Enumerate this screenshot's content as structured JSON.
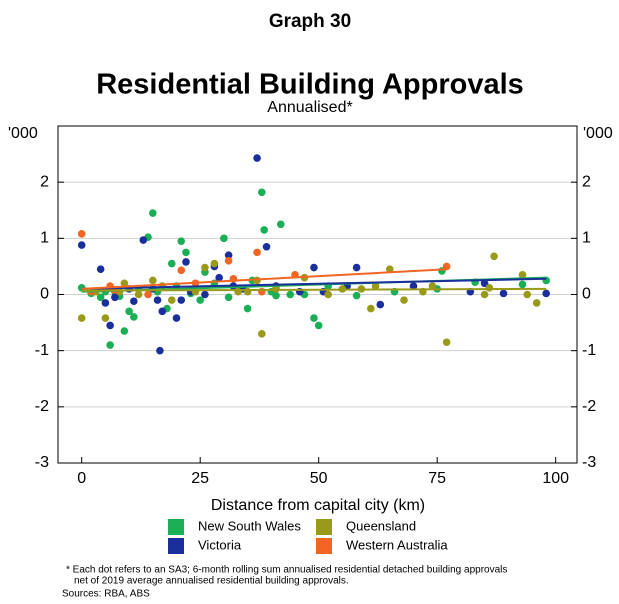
{
  "chart_data": {
    "type": "scatter",
    "title": "Graph 30",
    "subtitle": "Residential Building Approvals",
    "note": "Annualised*",
    "x_label": "Distance from capital city (km)",
    "y_label": "'000",
    "y2_label": "'000",
    "xlim": [
      -5,
      104.5
    ],
    "xticks": [
      0,
      25,
      50,
      75,
      100
    ],
    "ylim": [
      -3,
      3
    ],
    "yticks": [
      -3,
      -2,
      -1,
      0,
      1,
      2
    ],
    "y2lim": [
      -3,
      3
    ],
    "y2ticks": [
      -3,
      -2,
      -1,
      0,
      1,
      2
    ],
    "grid": true,
    "series": [
      {
        "name": "New South Wales",
        "color": "#1aaf54",
        "x": [
          0,
          2,
          4,
          5,
          6,
          7,
          8,
          9,
          10,
          11,
          12,
          14,
          15,
          16,
          18,
          19,
          20,
          21,
          22,
          23,
          25,
          26,
          28,
          30,
          31,
          35,
          36,
          38,
          38.5,
          40,
          41,
          42,
          44,
          47,
          49,
          50,
          52,
          58,
          66,
          75,
          76,
          83,
          93,
          98
        ],
        "values": [
          0.12,
          0.02,
          -0.05,
          0.05,
          -0.9,
          0.05,
          -0.03,
          -0.65,
          -0.3,
          -0.4,
          0.1,
          1.02,
          1.45,
          0.05,
          -0.25,
          0.55,
          0.15,
          0.95,
          0.75,
          0.02,
          -0.1,
          0.4,
          0.2,
          1.0,
          -0.05,
          -0.25,
          0.25,
          1.82,
          1.15,
          0.05,
          -0.02,
          1.25,
          0.0,
          0.0,
          -0.42,
          -0.55,
          0.15,
          -0.02,
          0.05,
          0.1,
          0.42,
          0.22,
          0.18,
          0.25
        ],
        "trend": {
          "x": [
            0,
            98
          ],
          "values": [
            0.05,
            0.3
          ]
        }
      },
      {
        "name": "Victoria",
        "color": "#1a2e9c",
        "x": [
          0,
          4,
          5,
          6,
          7,
          10,
          11,
          13,
          15,
          16,
          16.5,
          17,
          20,
          21,
          22,
          23,
          26,
          28,
          29,
          31,
          32,
          34,
          37,
          39,
          41,
          46,
          49,
          51,
          56,
          58,
          63,
          70,
          82,
          85,
          89,
          98
        ],
        "values": [
          0.88,
          0.45,
          -0.15,
          -0.55,
          -0.05,
          0.1,
          -0.12,
          0.97,
          0.1,
          -0.1,
          -1.0,
          -0.3,
          -0.42,
          -0.1,
          0.58,
          0.05,
          0.0,
          0.5,
          0.3,
          0.7,
          0.15,
          0.1,
          2.43,
          0.85,
          0.15,
          0.05,
          0.48,
          0.05,
          0.15,
          0.48,
          -0.18,
          0.15,
          0.05,
          0.2,
          0.02,
          0.02
        ],
        "trend": {
          "x": [
            0,
            98
          ],
          "values": [
            0.1,
            0.28
          ]
        }
      },
      {
        "name": "Queensland",
        "color": "#9a9a1a",
        "x": [
          0,
          3,
          5,
          8,
          9,
          12,
          15,
          17,
          19,
          24,
          26,
          28,
          33,
          35,
          37,
          38,
          41,
          47,
          52,
          55,
          59,
          61,
          62,
          65,
          68,
          72,
          74,
          77,
          85,
          86,
          87,
          93,
          94,
          96
        ],
        "values": [
          -0.42,
          0.05,
          -0.42,
          0.05,
          0.2,
          0.0,
          0.25,
          0.15,
          -0.1,
          0.05,
          0.48,
          0.55,
          0.05,
          0.05,
          0.25,
          -0.7,
          0.1,
          0.3,
          0.0,
          0.1,
          0.1,
          -0.25,
          0.15,
          0.45,
          -0.1,
          0.05,
          0.15,
          -0.85,
          0.0,
          0.12,
          0.68,
          0.35,
          0.0,
          -0.15
        ],
        "trend": {
          "x": [
            0,
            98
          ],
          "values": [
            0.07,
            0.1
          ]
        }
      },
      {
        "name": "Western Australia",
        "color": "#f26522",
        "x": [
          0,
          2,
          6,
          7,
          14,
          21,
          24,
          31,
          32,
          37,
          38,
          45,
          77
        ],
        "values": [
          1.08,
          0.05,
          0.15,
          0.08,
          0.0,
          0.43,
          0.2,
          0.6,
          0.28,
          0.75,
          0.05,
          0.35,
          0.5
        ],
        "trend": {
          "x": [
            0,
            77
          ],
          "values": [
            0.1,
            0.45
          ]
        }
      }
    ],
    "footnote": [
      "* Each dot refers to an SA3; 6-month rolling sum annualised residential detached building approvals",
      "net of 2019 average annualised residential building approvals."
    ],
    "sources": "Sources: RBA, ABS"
  }
}
